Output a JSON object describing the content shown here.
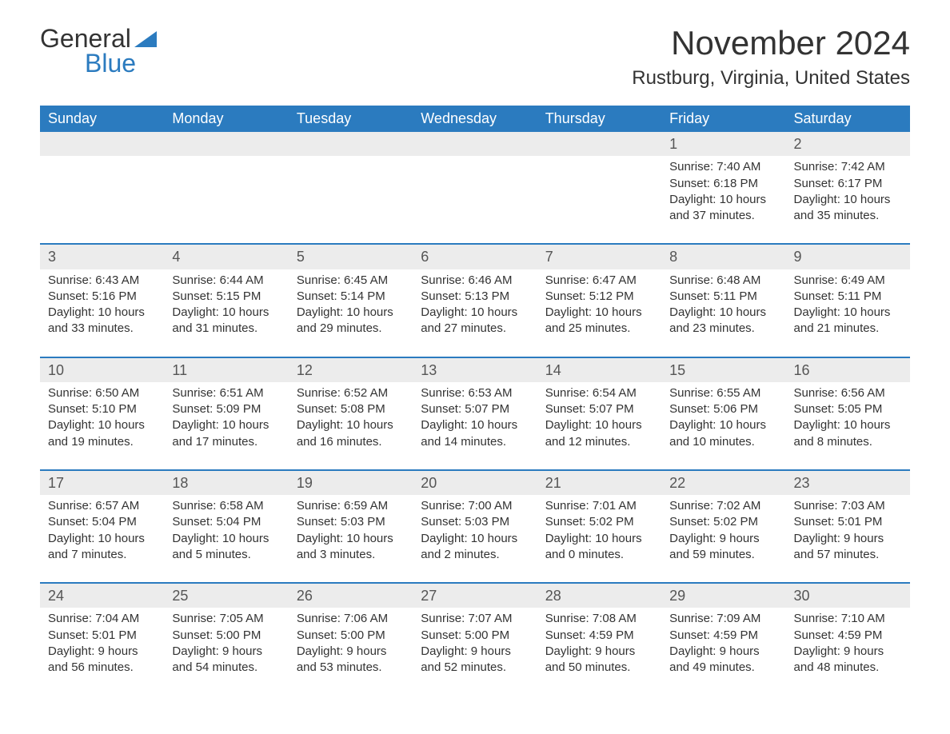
{
  "logo": {
    "text1": "General",
    "text2": "Blue"
  },
  "title": "November 2024",
  "location": "Rustburg, Virginia, United States",
  "colors": {
    "header_bg": "#2b7bbf",
    "header_text": "#ffffff",
    "daynum_bg": "#ececec",
    "border": "#2b7bbf",
    "text": "#333333"
  },
  "weekdays": [
    "Sunday",
    "Monday",
    "Tuesday",
    "Wednesday",
    "Thursday",
    "Friday",
    "Saturday"
  ],
  "weeks": [
    [
      null,
      null,
      null,
      null,
      null,
      {
        "n": "1",
        "sr": "Sunrise: 7:40 AM",
        "ss": "Sunset: 6:18 PM",
        "dl": "Daylight: 10 hours and 37 minutes."
      },
      {
        "n": "2",
        "sr": "Sunrise: 7:42 AM",
        "ss": "Sunset: 6:17 PM",
        "dl": "Daylight: 10 hours and 35 minutes."
      }
    ],
    [
      {
        "n": "3",
        "sr": "Sunrise: 6:43 AM",
        "ss": "Sunset: 5:16 PM",
        "dl": "Daylight: 10 hours and 33 minutes."
      },
      {
        "n": "4",
        "sr": "Sunrise: 6:44 AM",
        "ss": "Sunset: 5:15 PM",
        "dl": "Daylight: 10 hours and 31 minutes."
      },
      {
        "n": "5",
        "sr": "Sunrise: 6:45 AM",
        "ss": "Sunset: 5:14 PM",
        "dl": "Daylight: 10 hours and 29 minutes."
      },
      {
        "n": "6",
        "sr": "Sunrise: 6:46 AM",
        "ss": "Sunset: 5:13 PM",
        "dl": "Daylight: 10 hours and 27 minutes."
      },
      {
        "n": "7",
        "sr": "Sunrise: 6:47 AM",
        "ss": "Sunset: 5:12 PM",
        "dl": "Daylight: 10 hours and 25 minutes."
      },
      {
        "n": "8",
        "sr": "Sunrise: 6:48 AM",
        "ss": "Sunset: 5:11 PM",
        "dl": "Daylight: 10 hours and 23 minutes."
      },
      {
        "n": "9",
        "sr": "Sunrise: 6:49 AM",
        "ss": "Sunset: 5:11 PM",
        "dl": "Daylight: 10 hours and 21 minutes."
      }
    ],
    [
      {
        "n": "10",
        "sr": "Sunrise: 6:50 AM",
        "ss": "Sunset: 5:10 PM",
        "dl": "Daylight: 10 hours and 19 minutes."
      },
      {
        "n": "11",
        "sr": "Sunrise: 6:51 AM",
        "ss": "Sunset: 5:09 PM",
        "dl": "Daylight: 10 hours and 17 minutes."
      },
      {
        "n": "12",
        "sr": "Sunrise: 6:52 AM",
        "ss": "Sunset: 5:08 PM",
        "dl": "Daylight: 10 hours and 16 minutes."
      },
      {
        "n": "13",
        "sr": "Sunrise: 6:53 AM",
        "ss": "Sunset: 5:07 PM",
        "dl": "Daylight: 10 hours and 14 minutes."
      },
      {
        "n": "14",
        "sr": "Sunrise: 6:54 AM",
        "ss": "Sunset: 5:07 PM",
        "dl": "Daylight: 10 hours and 12 minutes."
      },
      {
        "n": "15",
        "sr": "Sunrise: 6:55 AM",
        "ss": "Sunset: 5:06 PM",
        "dl": "Daylight: 10 hours and 10 minutes."
      },
      {
        "n": "16",
        "sr": "Sunrise: 6:56 AM",
        "ss": "Sunset: 5:05 PM",
        "dl": "Daylight: 10 hours and 8 minutes."
      }
    ],
    [
      {
        "n": "17",
        "sr": "Sunrise: 6:57 AM",
        "ss": "Sunset: 5:04 PM",
        "dl": "Daylight: 10 hours and 7 minutes."
      },
      {
        "n": "18",
        "sr": "Sunrise: 6:58 AM",
        "ss": "Sunset: 5:04 PM",
        "dl": "Daylight: 10 hours and 5 minutes."
      },
      {
        "n": "19",
        "sr": "Sunrise: 6:59 AM",
        "ss": "Sunset: 5:03 PM",
        "dl": "Daylight: 10 hours and 3 minutes."
      },
      {
        "n": "20",
        "sr": "Sunrise: 7:00 AM",
        "ss": "Sunset: 5:03 PM",
        "dl": "Daylight: 10 hours and 2 minutes."
      },
      {
        "n": "21",
        "sr": "Sunrise: 7:01 AM",
        "ss": "Sunset: 5:02 PM",
        "dl": "Daylight: 10 hours and 0 minutes."
      },
      {
        "n": "22",
        "sr": "Sunrise: 7:02 AM",
        "ss": "Sunset: 5:02 PM",
        "dl": "Daylight: 9 hours and 59 minutes."
      },
      {
        "n": "23",
        "sr": "Sunrise: 7:03 AM",
        "ss": "Sunset: 5:01 PM",
        "dl": "Daylight: 9 hours and 57 minutes."
      }
    ],
    [
      {
        "n": "24",
        "sr": "Sunrise: 7:04 AM",
        "ss": "Sunset: 5:01 PM",
        "dl": "Daylight: 9 hours and 56 minutes."
      },
      {
        "n": "25",
        "sr": "Sunrise: 7:05 AM",
        "ss": "Sunset: 5:00 PM",
        "dl": "Daylight: 9 hours and 54 minutes."
      },
      {
        "n": "26",
        "sr": "Sunrise: 7:06 AM",
        "ss": "Sunset: 5:00 PM",
        "dl": "Daylight: 9 hours and 53 minutes."
      },
      {
        "n": "27",
        "sr": "Sunrise: 7:07 AM",
        "ss": "Sunset: 5:00 PM",
        "dl": "Daylight: 9 hours and 52 minutes."
      },
      {
        "n": "28",
        "sr": "Sunrise: 7:08 AM",
        "ss": "Sunset: 4:59 PM",
        "dl": "Daylight: 9 hours and 50 minutes."
      },
      {
        "n": "29",
        "sr": "Sunrise: 7:09 AM",
        "ss": "Sunset: 4:59 PM",
        "dl": "Daylight: 9 hours and 49 minutes."
      },
      {
        "n": "30",
        "sr": "Sunrise: 7:10 AM",
        "ss": "Sunset: 4:59 PM",
        "dl": "Daylight: 9 hours and 48 minutes."
      }
    ]
  ]
}
